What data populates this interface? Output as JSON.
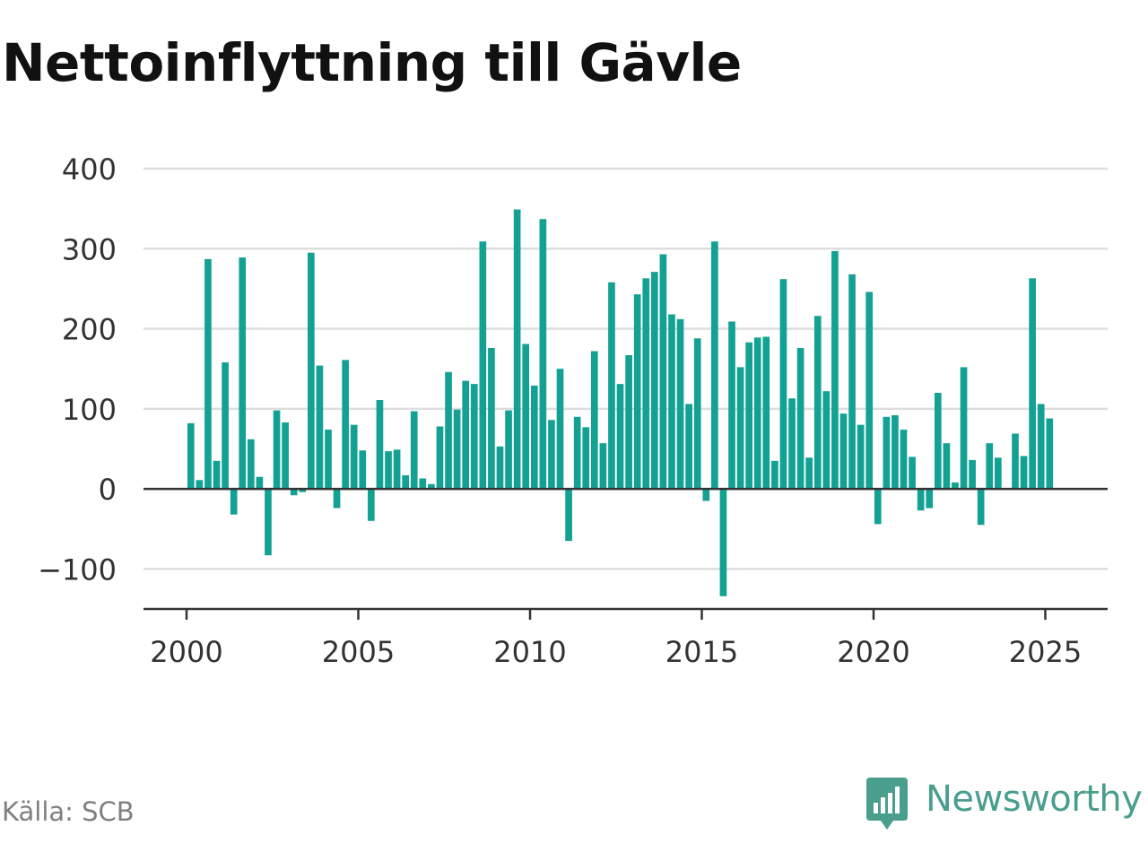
{
  "title": "Nettoinflyttning till Gävle",
  "source": "Källa: SCB",
  "brand": "Newsworthy",
  "colors": {
    "bar": "#12a192",
    "brand": "#4a9e8e",
    "grid": "#dddddd",
    "axis": "#333333"
  },
  "chart_data": {
    "type": "bar",
    "title": "Nettoinflyttning till Gävle",
    "xlabel": "",
    "ylabel": "",
    "ylim": [
      -150,
      400
    ],
    "xlim": [
      1999.3,
      2028.0
    ],
    "yticks": [
      400,
      300,
      200,
      100,
      0,
      -100
    ],
    "ytick_labels": [
      "400",
      "300",
      "200",
      "100",
      "0",
      "−100"
    ],
    "xticks": [
      2000,
      2005,
      2010,
      2015,
      2020,
      2025
    ],
    "xtick_labels": [
      "2000",
      "2005",
      "2010",
      "2015",
      "2020",
      "2025"
    ],
    "start_year": 2000,
    "periods_per_year": 4,
    "values": [
      82,
      11,
      287,
      35,
      158,
      -32,
      289,
      62,
      15,
      -83,
      98,
      83,
      -8,
      -4,
      295,
      154,
      74,
      -24,
      161,
      80,
      48,
      -40,
      111,
      47,
      49,
      17,
      97,
      13,
      6,
      78,
      146,
      99,
      135,
      131,
      309,
      176,
      53,
      98,
      349,
      181,
      129,
      337,
      86,
      150,
      -65,
      90,
      77,
      172,
      57,
      258,
      131,
      167,
      243,
      263,
      271,
      293,
      218,
      212,
      106,
      188,
      -15,
      309,
      -134,
      209,
      152,
      183,
      189,
      190,
      35,
      262,
      113,
      176,
      39,
      216,
      122,
      297,
      94,
      268,
      80,
      246,
      -44,
      90,
      92,
      74,
      40,
      -27,
      -24,
      120,
      57,
      8,
      152,
      36,
      -45,
      57,
      39,
      -1,
      69,
      41,
      263,
      106,
      88
    ]
  }
}
